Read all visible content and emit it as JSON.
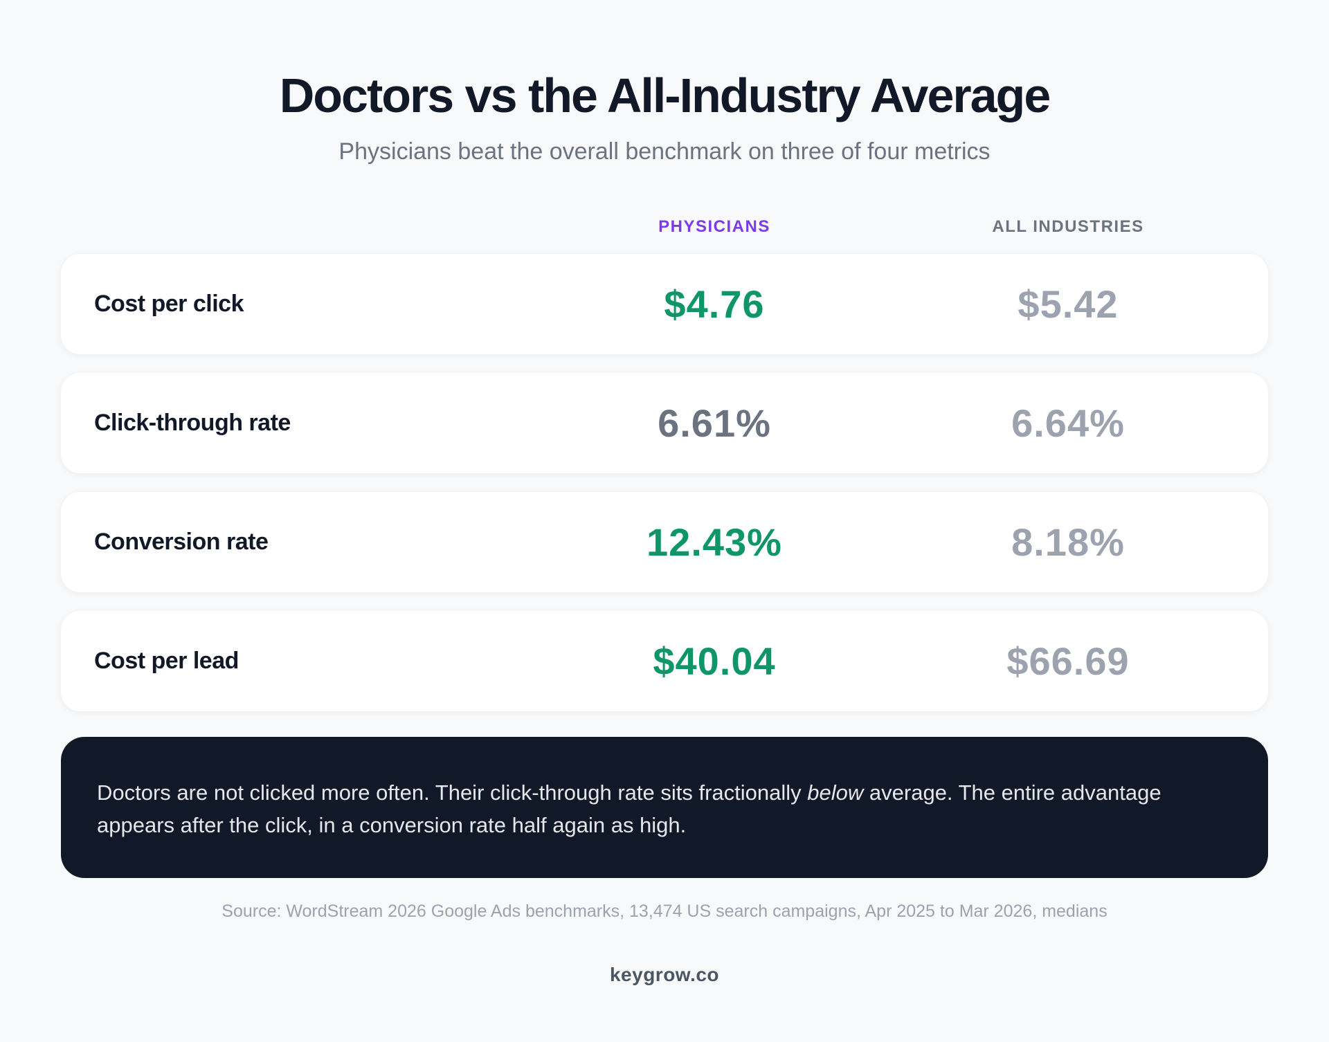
{
  "title": "Doctors vs the All-Industry Average",
  "subtitle": "Physicians beat the overall benchmark on three of four metrics",
  "colors": {
    "accent_purple": "#7c3aed",
    "better_green": "#0f9668",
    "neutral_dark": "#6b7280",
    "benchmark_gray": "#9ca3af",
    "callout_bg": "#111827"
  },
  "chart_data": {
    "type": "table",
    "columns": [
      "PHYSICIANS",
      "ALL INDUSTRIES"
    ],
    "rows": [
      {
        "metric": "Cost per click",
        "physicians": "$4.76",
        "all_industries": "$5.42",
        "physicians_better": true
      },
      {
        "metric": "Click-through rate",
        "physicians": "6.61%",
        "all_industries": "6.64%",
        "physicians_better": false
      },
      {
        "metric": "Conversion rate",
        "physicians": "12.43%",
        "all_industries": "8.18%",
        "physicians_better": true
      },
      {
        "metric": "Cost per lead",
        "physicians": "$40.04",
        "all_industries": "$66.69",
        "physicians_better": true
      }
    ]
  },
  "callout": {
    "before": "Doctors are not clicked more often. Their click-through rate sits fractionally ",
    "emphasis": "below",
    "after": " average. The entire advantage appears after the click, in a conversion rate half again as high."
  },
  "source": "Source: WordStream 2026 Google Ads benchmarks, 13,474 US search campaigns, Apr 2025 to Mar 2026, medians",
  "brand": "keygrow.co"
}
